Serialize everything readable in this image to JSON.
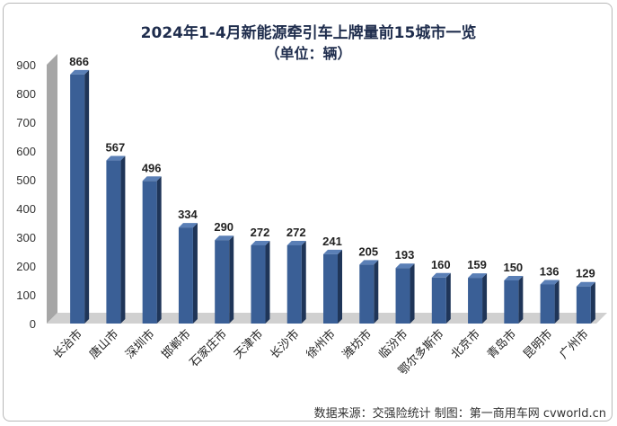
{
  "chart_data": {
    "type": "bar",
    "title": "2024年1-4月新能源牵引车上牌量前15城市一览",
    "subtitle": "（单位：辆）",
    "xlabel": "",
    "ylabel": "",
    "ylim": [
      0,
      900
    ],
    "yticks": [
      0,
      100,
      200,
      300,
      400,
      500,
      600,
      700,
      800,
      900
    ],
    "categories": [
      "长治市",
      "唐山市",
      "深圳市",
      "邯郸市",
      "石家庄市",
      "天津市",
      "长沙市",
      "徐州市",
      "潍坊市",
      "临汾市",
      "鄂尔多斯市",
      "北京市",
      "青岛市",
      "昆明市",
      "广州市"
    ],
    "values": [
      866,
      567,
      496,
      334,
      290,
      272,
      272,
      241,
      205,
      193,
      160,
      159,
      150,
      136,
      129
    ],
    "grid": false,
    "legend": "none",
    "bar_color": "#3a5f96"
  },
  "source": "数据来源：交强险统计  制图：第一商用车网 cvworld.cn"
}
